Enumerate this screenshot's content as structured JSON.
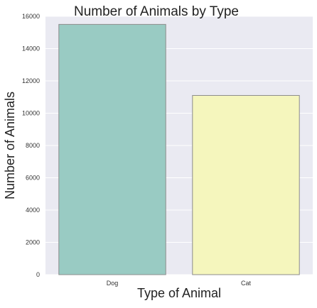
{
  "chart_data": {
    "type": "bar",
    "title": "Number of Animals by Type",
    "xlabel": "Type of Animal",
    "ylabel": "Number of Animals",
    "categories": [
      "Dog",
      "Cat"
    ],
    "values": [
      15500,
      11100
    ],
    "colors": [
      "#99cbc3",
      "#f5f6bd"
    ],
    "bar_edge_color": "#8c8c8c",
    "ylim": [
      0,
      16000
    ],
    "yticks": [
      0,
      2000,
      4000,
      6000,
      8000,
      10000,
      12000,
      14000,
      16000
    ],
    "grid": true,
    "plot_background": "#eaeaf2",
    "grid_color": "#ffffff"
  }
}
